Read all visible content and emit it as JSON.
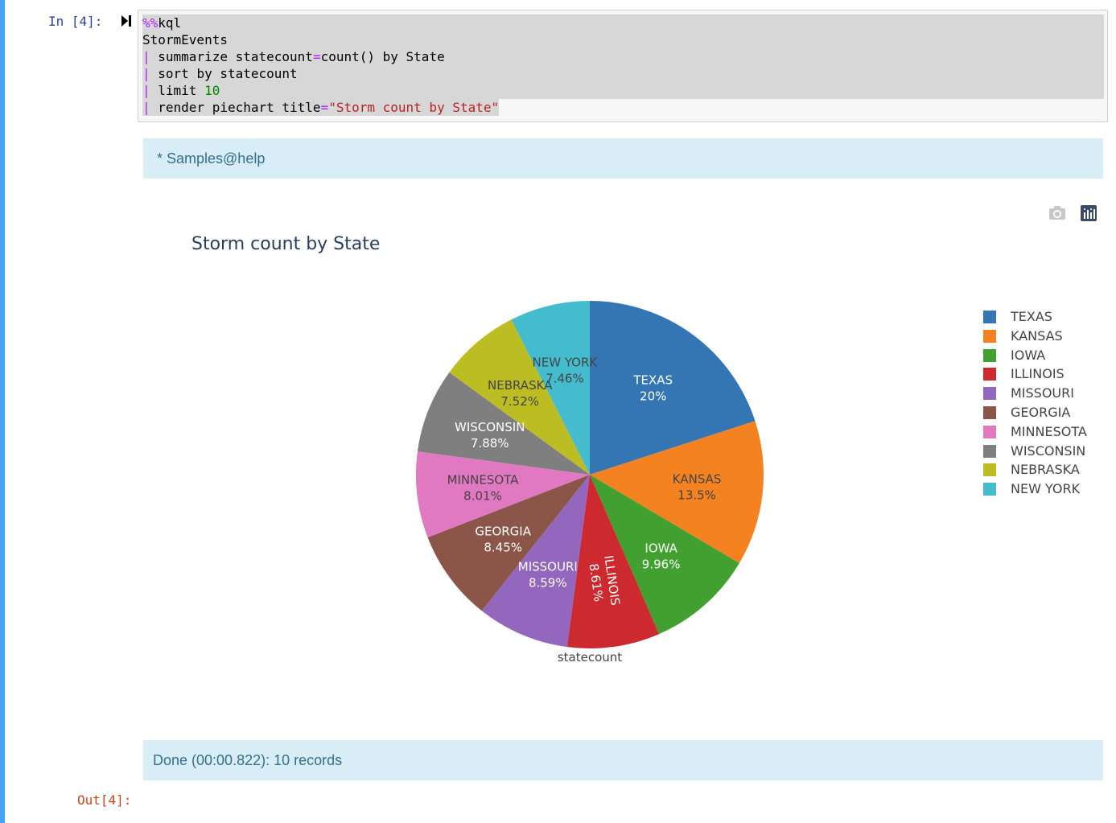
{
  "notebook": {
    "in_prompt": "In [4]:",
    "out_prompt": "Out[4]:",
    "code_lines": [
      [
        {
          "t": "%%",
          "c": "magic"
        },
        {
          "t": "kql",
          "c": ""
        }
      ],
      [
        {
          "t": "StormEvents",
          "c": ""
        }
      ],
      [
        {
          "t": "|",
          "c": "pipe"
        },
        {
          "t": " summarize statecount",
          "c": ""
        },
        {
          "t": "=",
          "c": "op"
        },
        {
          "t": "count() by State",
          "c": ""
        }
      ],
      [
        {
          "t": "|",
          "c": "pipe"
        },
        {
          "t": " sort by statecount",
          "c": ""
        }
      ],
      [
        {
          "t": "|",
          "c": "pipe"
        },
        {
          "t": " limit ",
          "c": ""
        },
        {
          "t": "10",
          "c": "num"
        }
      ],
      [
        {
          "t": "|",
          "c": "pipe"
        },
        {
          "t": " render piechart title",
          "c": ""
        },
        {
          "t": "=",
          "c": "op"
        },
        {
          "t": "\"Storm count by State\"",
          "c": "str"
        }
      ]
    ],
    "samples_text": "* Samples@help",
    "done_text": "Done (00:00.822): 10 records"
  },
  "toolbar": {
    "camera_icon": "camera-icon",
    "plotly_icon": "plotly-logo-icon"
  },
  "chart_data": {
    "type": "pie",
    "title": "Storm count by State",
    "xlabel": "statecount",
    "labels": [
      "TEXAS",
      "KANSAS",
      "IOWA",
      "ILLINOIS",
      "MISSOURI",
      "GEORGIA",
      "MINNESOTA",
      "WISCONSIN",
      "NEBRASKA",
      "NEW YORK"
    ],
    "values": [
      20.0,
      13.5,
      9.96,
      8.61,
      8.59,
      8.45,
      8.01,
      7.88,
      7.52,
      7.46
    ],
    "percent_labels": [
      "20%",
      "13.5%",
      "9.96%",
      "8.61%",
      "8.59%",
      "8.45%",
      "8.01%",
      "7.88%",
      "7.52%",
      "7.46%"
    ],
    "colors": [
      "#3475b4",
      "#f58220",
      "#41a030",
      "#cc2a2e",
      "#9367bd",
      "#8b5649",
      "#e078c2",
      "#7f7f7f",
      "#bcbd22",
      "#45bccd"
    ],
    "text_colors": [
      "#ffffff",
      "#444444",
      "#ffffff",
      "#ffffff",
      "#ffffff",
      "#ffffff",
      "#444444",
      "#ffffff",
      "#444444",
      "#444444"
    ],
    "legend_placement": "right",
    "legend_order": [
      "TEXAS",
      "KANSAS",
      "IOWA",
      "ILLINOIS",
      "MISSOURI",
      "GEORGIA",
      "MINNESOTA",
      "WISCONSIN",
      "NEBRASKA",
      "NEW YORK"
    ]
  }
}
